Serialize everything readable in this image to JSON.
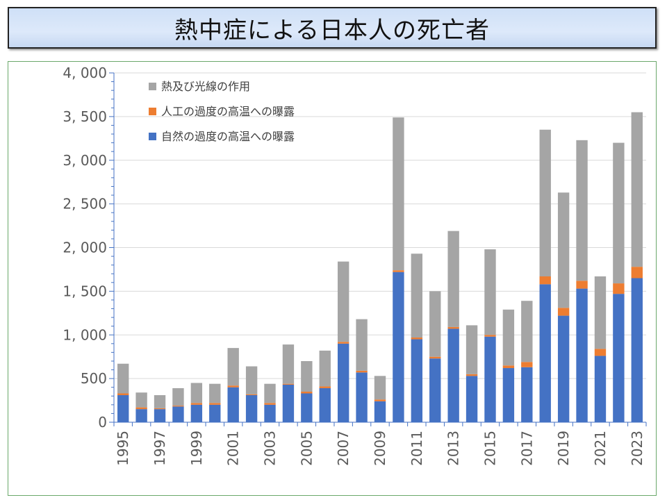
{
  "title": "熱中症による日本人の死亡者",
  "colors": {
    "natural": "#4472c4",
    "artificial": "#ed7d31",
    "other": "#a5a5a5",
    "grid": "#d9d9d9",
    "axis": "#4472c4"
  },
  "chart_data": {
    "type": "bar",
    "stacked": true,
    "x": [
      1995,
      1996,
      1997,
      1998,
      1999,
      2000,
      2001,
      2002,
      2003,
      2004,
      2005,
      2006,
      2007,
      2008,
      2009,
      2010,
      2011,
      2012,
      2013,
      2014,
      2015,
      2016,
      2017,
      2018,
      2019,
      2020,
      2021,
      2022,
      2023
    ],
    "x_tick_labels": [
      "1995",
      "1997",
      "1999",
      "2001",
      "2003",
      "2005",
      "2007",
      "2009",
      "2011",
      "2013",
      "2015",
      "2017",
      "2019",
      "2021",
      "2023"
    ],
    "y_tick_labels": [
      "0",
      "500",
      "1, 000",
      "1, 500",
      "2, 000",
      "2, 500",
      "3, 000",
      "3, 500",
      "4, 000"
    ],
    "ylim": [
      0,
      4000
    ],
    "y_major": 500,
    "y_minor": 100,
    "grid": true,
    "legend_position": "top-left",
    "series": [
      {
        "name": "自然の過度の高温への曝露",
        "color": "#4472c4",
        "values": [
          310,
          150,
          150,
          180,
          200,
          200,
          400,
          310,
          200,
          430,
          330,
          390,
          900,
          570,
          240,
          1720,
          950,
          730,
          1070,
          530,
          980,
          620,
          630,
          1580,
          1220,
          1530,
          760,
          1470,
          1650
        ]
      },
      {
        "name": "人工の過度の高温への曝露",
        "color": "#ed7d31",
        "values": [
          20,
          20,
          10,
          10,
          20,
          20,
          20,
          10,
          20,
          10,
          20,
          20,
          20,
          20,
          20,
          20,
          20,
          20,
          20,
          20,
          20,
          30,
          60,
          90,
          90,
          90,
          80,
          120,
          130
        ]
      },
      {
        "name": "熱及び光線の作用",
        "color": "#a5a5a5",
        "values": [
          340,
          170,
          150,
          200,
          230,
          220,
          430,
          320,
          220,
          450,
          350,
          410,
          920,
          590,
          270,
          1750,
          960,
          750,
          1100,
          560,
          980,
          640,
          700,
          1680,
          1320,
          1610,
          830,
          1610,
          1770
        ]
      }
    ],
    "legend_order": [
      2,
      1,
      0
    ],
    "title": "",
    "xlabel": "",
    "ylabel": ""
  }
}
